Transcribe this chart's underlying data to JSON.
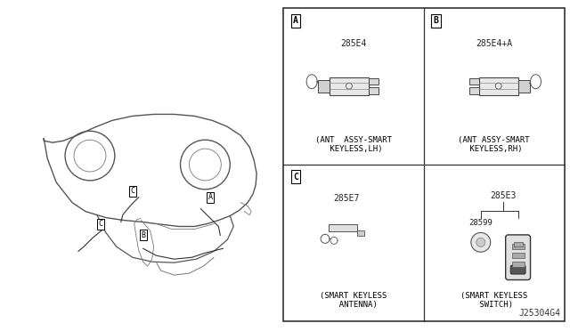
{
  "bg_color": "#ffffff",
  "border_color": "#000000",
  "text_color": "#000000",
  "fig_width": 6.4,
  "fig_height": 3.72,
  "diagram_title": "J25304G4",
  "sections": {
    "A": {
      "label": "A",
      "part_num": "285E4",
      "desc1": "(ANT  ASSY-SMART",
      "desc2": " KEYLESS,LH)"
    },
    "B": {
      "label": "B",
      "part_num": "285E4+A",
      "desc1": "(ANT ASSY-SMART",
      "desc2": " KEYLESS,RH)"
    },
    "C_left": {
      "label": "C",
      "part_num": "285E7",
      "desc1": "(SMART KEYLESS",
      "desc2": "  ANTENNA)"
    },
    "C_right": {
      "part_num_top": "285E3",
      "part_num_sub": "28599",
      "desc1": "(SMART KEYLESS",
      "desc2": " SWITCH)"
    }
  }
}
